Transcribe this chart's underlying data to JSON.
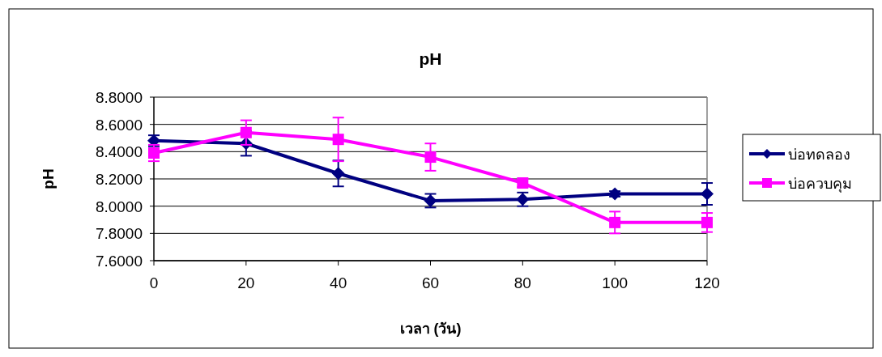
{
  "chart_data": {
    "type": "line",
    "title": "pH",
    "xlabel": "เวลา (วัน)",
    "ylabel": "pH",
    "x": [
      0,
      20,
      40,
      60,
      80,
      100,
      120
    ],
    "xlim": [
      0,
      120
    ],
    "xticks": [
      0,
      20,
      40,
      60,
      80,
      100,
      120
    ],
    "ylim": [
      7.6,
      8.8
    ],
    "yticks": [
      {
        "value": 7.6,
        "label": "7.6000"
      },
      {
        "value": 7.8,
        "label": "7.8000"
      },
      {
        "value": 8.0,
        "label": "8.0000"
      },
      {
        "value": 8.2,
        "label": "8.2000"
      },
      {
        "value": 8.4,
        "label": "8.4000"
      },
      {
        "value": 8.6,
        "label": "8.6000"
      },
      {
        "value": 8.8,
        "label": "8.8000"
      }
    ],
    "grid": "y",
    "legend": "right",
    "series": [
      {
        "name": "บ่อทดลอง",
        "color": "#000080",
        "marker": "diamond",
        "values": [
          8.48,
          8.46,
          8.24,
          8.04,
          8.05,
          8.09,
          8.09
        ],
        "errors": [
          0.04,
          0.09,
          0.095,
          0.05,
          0.05,
          0.02,
          0.08
        ]
      },
      {
        "name": "บ่อควบคุม",
        "color": "#ff00ff",
        "marker": "square",
        "values": [
          8.39,
          8.54,
          8.49,
          8.36,
          8.17,
          7.88,
          7.88
        ],
        "errors": [
          0.06,
          0.09,
          0.16,
          0.1,
          0.03,
          0.08,
          0.07
        ]
      }
    ]
  }
}
